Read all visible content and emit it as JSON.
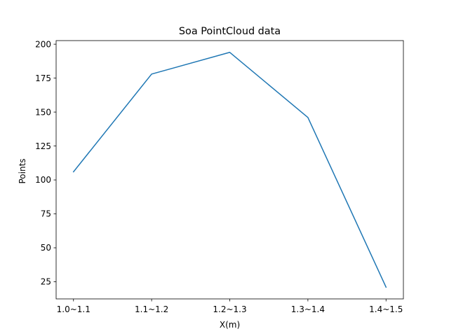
{
  "chart_data": {
    "type": "line",
    "title": "Soa PointCloud data",
    "xlabel": "X(m)",
    "ylabel": "Points",
    "categories": [
      "1.0~1.1",
      "1.1~1.2",
      "1.2~1.3",
      "1.3~1.4",
      "1.4~1.5"
    ],
    "series": [
      {
        "values": [
          106,
          178,
          194,
          146,
          21
        ],
        "color": "#1f77b4"
      }
    ],
    "yticks": [
      25,
      50,
      75,
      100,
      125,
      150,
      175,
      200
    ],
    "ylim": [
      12.35,
      202.65
    ],
    "grid": false
  }
}
